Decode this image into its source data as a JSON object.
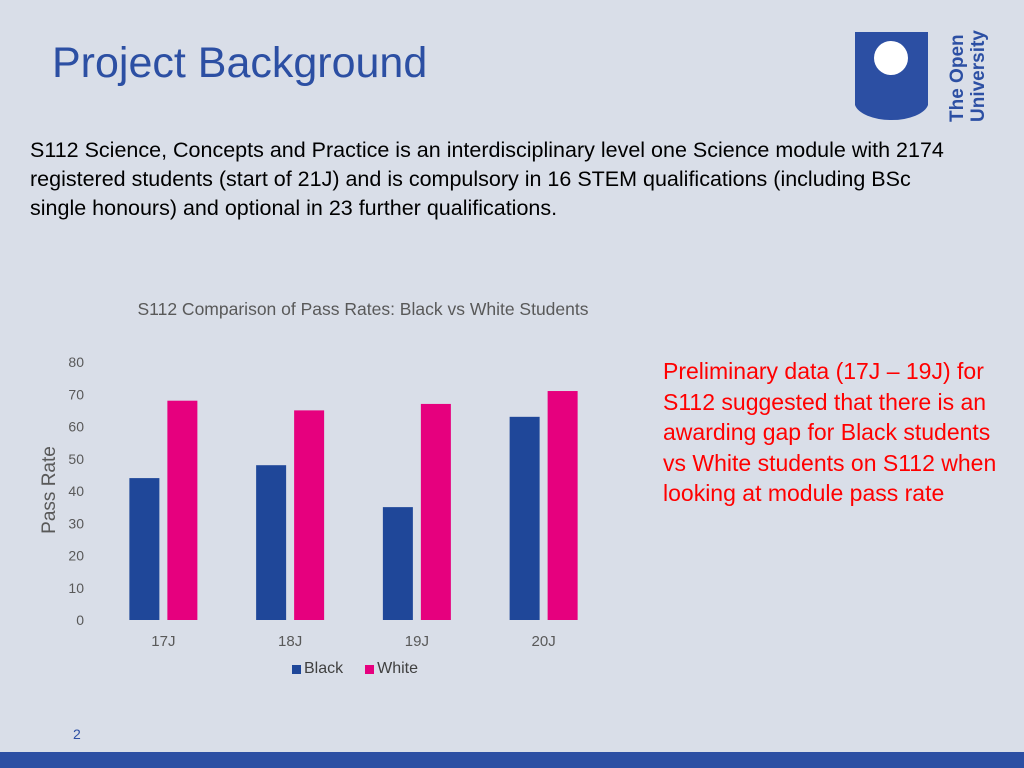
{
  "slide": {
    "title": "Project Background",
    "intro": "S112 Science, Concepts and Practice is an interdisciplinary level one Science module with 2174 registered students (start of 21J) and is compulsory in 16 STEM qualifications (including BSc single honours) and optional in 23 further qualifications.",
    "note": "Preliminary data (17J – 19J) for S112 suggested that there is an awarding gap for Black students vs White students on S112 when looking at module pass rate",
    "page_number": "2"
  },
  "logo": {
    "line1": "The Open",
    "line2": "University",
    "color": "#2c4fa3"
  },
  "chart_data": {
    "type": "bar",
    "title": "S112 Comparison of Pass Rates: Black vs White Students",
    "categories": [
      "17J",
      "18J",
      "19J",
      "20J"
    ],
    "series": [
      {
        "name": "Black",
        "values": [
          44,
          48,
          35,
          63
        ],
        "color": "#1f4799"
      },
      {
        "name": "White",
        "values": [
          68,
          65,
          67,
          71
        ],
        "color": "#e6007e"
      }
    ],
    "xlabel": "",
    "ylabel": "Pass Rate",
    "ylim": [
      0,
      80
    ],
    "yticks": [
      0,
      10,
      20,
      30,
      40,
      50,
      60,
      70,
      80
    ],
    "grid": false,
    "legend": "bottom"
  }
}
